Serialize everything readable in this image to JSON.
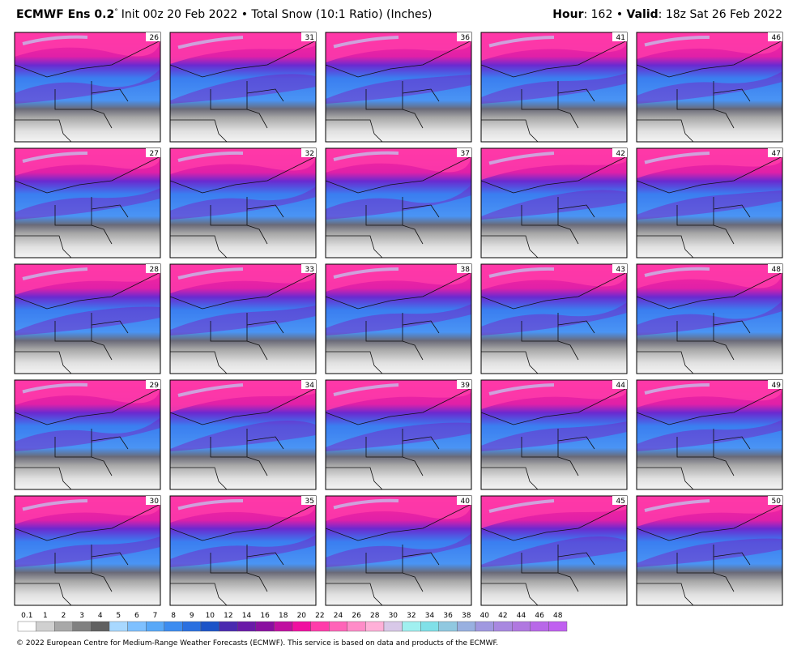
{
  "header": {
    "model": "ECMWF Ens 0.2",
    "degree": "°",
    "init": "Init 00z 20 Feb 2022 • Total Snow (10:1 Ratio) (Inches)",
    "hour_key": "Hour",
    "hour_value": ": 162 • ",
    "valid_key": "Valid",
    "valid_value": ": 18z Sat 26 Feb 2022"
  },
  "panels": [
    {
      "label": "26"
    },
    {
      "label": "27"
    },
    {
      "label": "28"
    },
    {
      "label": "29"
    },
    {
      "label": "30"
    },
    {
      "label": "31"
    },
    {
      "label": "32"
    },
    {
      "label": "33"
    },
    {
      "label": "34"
    },
    {
      "label": "35"
    },
    {
      "label": "36"
    },
    {
      "label": "37"
    },
    {
      "label": "38"
    },
    {
      "label": "39"
    },
    {
      "label": "40"
    },
    {
      "label": "41"
    },
    {
      "label": "42"
    },
    {
      "label": "43"
    },
    {
      "label": "44"
    },
    {
      "label": "45"
    },
    {
      "label": "46"
    },
    {
      "label": "47"
    },
    {
      "label": "48"
    },
    {
      "label": "49"
    },
    {
      "label": "50"
    }
  ],
  "colorbar": {
    "labels": [
      "0.1",
      "1",
      "2",
      "3",
      "4",
      "5",
      "6",
      "7",
      "8",
      "9",
      "10",
      "12",
      "14",
      "16",
      "18",
      "20",
      "22",
      "24",
      "26",
      "28",
      "30",
      "32",
      "34",
      "36",
      "38",
      "40",
      "42",
      "44",
      "46",
      "48"
    ],
    "colors": [
      "#ffffff",
      "#d0d0d0",
      "#a8a8a8",
      "#808080",
      "#606060",
      "#a8d8ff",
      "#7ec0ff",
      "#58a8f8",
      "#3c8cf0",
      "#2a70e0",
      "#1c54c8",
      "#4a2ab0",
      "#6a1aa8",
      "#8a10a0",
      "#c010a0",
      "#f010a0",
      "#ff3caa",
      "#ff64b8",
      "#ff8cc8",
      "#ffb0d8",
      "#d8c8e8",
      "#a0f0f0",
      "#80e0e8",
      "#90c8e0",
      "#98b0e0",
      "#a098e0",
      "#a888e0",
      "#b078e0",
      "#b868e8",
      "#c060f0"
    ]
  },
  "footer": "© 2022 European Centre for Medium-Range Weather Forecasts (ECMWF). This service is based on data and products of the ECMWF."
}
